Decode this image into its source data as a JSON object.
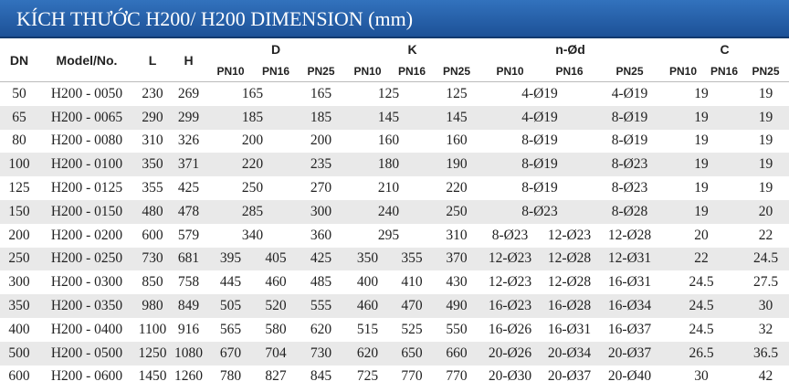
{
  "header": {
    "title": "KÍCH THƯỚC H200/ H200 DIMENSION (mm)"
  },
  "table": {
    "columns": [
      "DN",
      "Model/No.",
      "L",
      "H",
      "D",
      "K",
      "n-Ød",
      "C"
    ],
    "subheaders": [
      [
        "PN10",
        "PN16",
        "PN25"
      ],
      [
        "PN10",
        "PN16",
        "PN25"
      ],
      [
        "PN10",
        "PN16",
        "PN25"
      ],
      [
        "PN10",
        "PN16",
        "PN25"
      ]
    ],
    "rows": [
      {
        "dn": "50",
        "model": "H200 - 0050",
        "l": "230",
        "h": "269",
        "groups": [
          [
            "165",
            "165"
          ],
          [
            "125",
            "125"
          ],
          [
            "4-Ø19",
            "4-Ø19"
          ],
          [
            "19",
            "19"
          ]
        ]
      },
      {
        "dn": "65",
        "model": "H200 - 0065",
        "l": "290",
        "h": "299",
        "groups": [
          [
            "185",
            "185"
          ],
          [
            "145",
            "145"
          ],
          [
            "4-Ø19",
            "8-Ø19"
          ],
          [
            "19",
            "19"
          ]
        ]
      },
      {
        "dn": "80",
        "model": "H200 - 0080",
        "l": "310",
        "h": "326",
        "groups": [
          [
            "200",
            "200"
          ],
          [
            "160",
            "160"
          ],
          [
            "8-Ø19",
            "8-Ø19"
          ],
          [
            "19",
            "19"
          ]
        ]
      },
      {
        "dn": "100",
        "model": "H200 - 0100",
        "l": "350",
        "h": "371",
        "groups": [
          [
            "220",
            "235"
          ],
          [
            "180",
            "190"
          ],
          [
            "8-Ø19",
            "8-Ø23"
          ],
          [
            "19",
            "19"
          ]
        ]
      },
      {
        "dn": "125",
        "model": "H200 - 0125",
        "l": "355",
        "h": "425",
        "groups": [
          [
            "250",
            "270"
          ],
          [
            "210",
            "220"
          ],
          [
            "8-Ø19",
            "8-Ø23"
          ],
          [
            "19",
            "19"
          ]
        ]
      },
      {
        "dn": "150",
        "model": "H200 - 0150",
        "l": "480",
        "h": "478",
        "groups": [
          [
            "285",
            "300"
          ],
          [
            "240",
            "250"
          ],
          [
            "8-Ø23",
            "8-Ø28"
          ],
          [
            "19",
            "20"
          ]
        ]
      },
      {
        "dn": "200",
        "model": "H200 - 0200",
        "l": "600",
        "h": "579",
        "groups": [
          [
            "340",
            "360"
          ],
          [
            "295",
            "310"
          ],
          [
            "8-Ø23",
            "12-Ø23",
            "12-Ø28"
          ],
          [
            "20",
            "22"
          ]
        ]
      },
      {
        "dn": "250",
        "model": "H200 - 0250",
        "l": "730",
        "h": "681",
        "groups": [
          [
            "395",
            "405",
            "425"
          ],
          [
            "350",
            "355",
            "370"
          ],
          [
            "12-Ø23",
            "12-Ø28",
            "12-Ø31"
          ],
          [
            "22",
            "24.5"
          ]
        ]
      },
      {
        "dn": "300",
        "model": "H200 - 0300",
        "l": "850",
        "h": "758",
        "groups": [
          [
            "445",
            "460",
            "485"
          ],
          [
            "400",
            "410",
            "430"
          ],
          [
            "12-Ø23",
            "12-Ø28",
            "16-Ø31"
          ],
          [
            "24.5",
            "27.5"
          ]
        ]
      },
      {
        "dn": "350",
        "model": "H200 - 0350",
        "l": "980",
        "h": "849",
        "groups": [
          [
            "505",
            "520",
            "555"
          ],
          [
            "460",
            "470",
            "490"
          ],
          [
            "16-Ø23",
            "16-Ø28",
            "16-Ø34"
          ],
          [
            "24.5",
            "30"
          ]
        ]
      },
      {
        "dn": "400",
        "model": "H200 - 0400",
        "l": "1100",
        "h": "916",
        "groups": [
          [
            "565",
            "580",
            "620"
          ],
          [
            "515",
            "525",
            "550"
          ],
          [
            "16-Ø26",
            "16-Ø31",
            "16-Ø37"
          ],
          [
            "24.5",
            "32"
          ]
        ]
      },
      {
        "dn": "500",
        "model": "H200 - 0500",
        "l": "1250",
        "h": "1080",
        "groups": [
          [
            "670",
            "704",
            "730"
          ],
          [
            "620",
            "650",
            "660"
          ],
          [
            "20-Ø26",
            "20-Ø34",
            "20-Ø37"
          ],
          [
            "26.5",
            "36.5"
          ]
        ]
      },
      {
        "dn": "600",
        "model": "H200 - 0600",
        "l": "1450",
        "h": "1260",
        "groups": [
          [
            "780",
            "827",
            "845"
          ],
          [
            "725",
            "770",
            "770"
          ],
          [
            "20-Ø30",
            "20-Ø37",
            "20-Ø40"
          ],
          [
            "30",
            "42"
          ]
        ]
      }
    ]
  }
}
